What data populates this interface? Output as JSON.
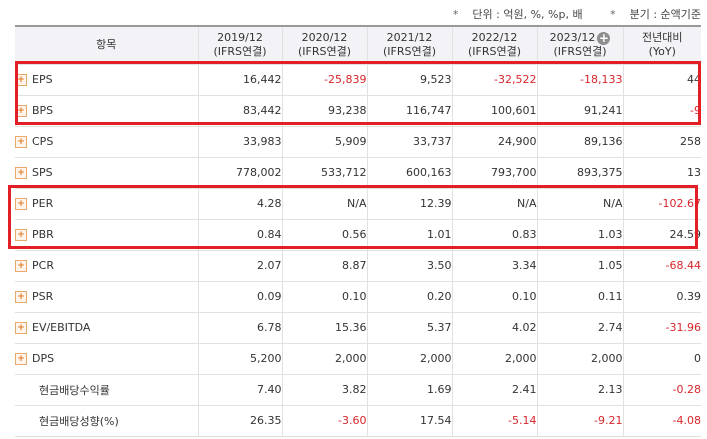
{
  "notes": {
    "unit": "단위 : 억원, %, %p, 배",
    "period": "분기 : 순액기준"
  },
  "header": {
    "item": "항목",
    "cols": [
      {
        "year": "2019/12",
        "basis": "(IFRS연결)"
      },
      {
        "year": "2020/12",
        "basis": "(IFRS연결)"
      },
      {
        "year": "2021/12",
        "basis": "(IFRS연결)"
      },
      {
        "year": "2022/12",
        "basis": "(IFRS연결)"
      },
      {
        "year": "2023/12",
        "basis": "(IFRS연결)"
      }
    ],
    "yoy_line1": "전년대비",
    "yoy_line2": "(YoY)"
  },
  "rows": [
    {
      "label": "EPS",
      "v": [
        "16,442",
        "-25,839",
        "9,523",
        "-32,522",
        "-18,133",
        "44"
      ]
    },
    {
      "label": "BPS",
      "v": [
        "83,442",
        "93,238",
        "116,747",
        "100,601",
        "91,241",
        "-9"
      ]
    },
    {
      "label": "CPS",
      "v": [
        "33,983",
        "5,909",
        "33,737",
        "24,900",
        "89,136",
        "258"
      ]
    },
    {
      "label": "SPS",
      "v": [
        "778,002",
        "533,712",
        "600,163",
        "793,700",
        "893,375",
        "13"
      ]
    },
    {
      "label": "PER",
      "v": [
        "4.28",
        "N/A",
        "12.39",
        "N/A",
        "N/A",
        "-102.67"
      ]
    },
    {
      "label": "PBR",
      "v": [
        "0.84",
        "0.56",
        "1.01",
        "0.83",
        "1.03",
        "24.59"
      ]
    },
    {
      "label": "PCR",
      "v": [
        "2.07",
        "8.87",
        "3.50",
        "3.34",
        "1.05",
        "-68.44"
      ]
    },
    {
      "label": "PSR",
      "v": [
        "0.09",
        "0.10",
        "0.20",
        "0.10",
        "0.11",
        "0.39"
      ]
    },
    {
      "label": "EV/EBITDA",
      "v": [
        "6.78",
        "15.36",
        "5.37",
        "4.02",
        "2.74",
        "-31.96"
      ]
    },
    {
      "label": "DPS",
      "v": [
        "5,200",
        "2,000",
        "2,000",
        "2,000",
        "2,000",
        "0"
      ]
    },
    {
      "label": "현금배당수익률",
      "v": [
        "7.40",
        "3.82",
        "1.69",
        "2.41",
        "2.13",
        "-0.28"
      ]
    },
    {
      "label": "현금배당성향(%)",
      "v": [
        "26.35",
        "-3.60",
        "17.54",
        "-5.14",
        "-9.21",
        "-4.08"
      ]
    }
  ],
  "colors": {
    "negative": "#d7262c",
    "highlight": "#e21f26",
    "header_bg": "#f3f3f7"
  }
}
